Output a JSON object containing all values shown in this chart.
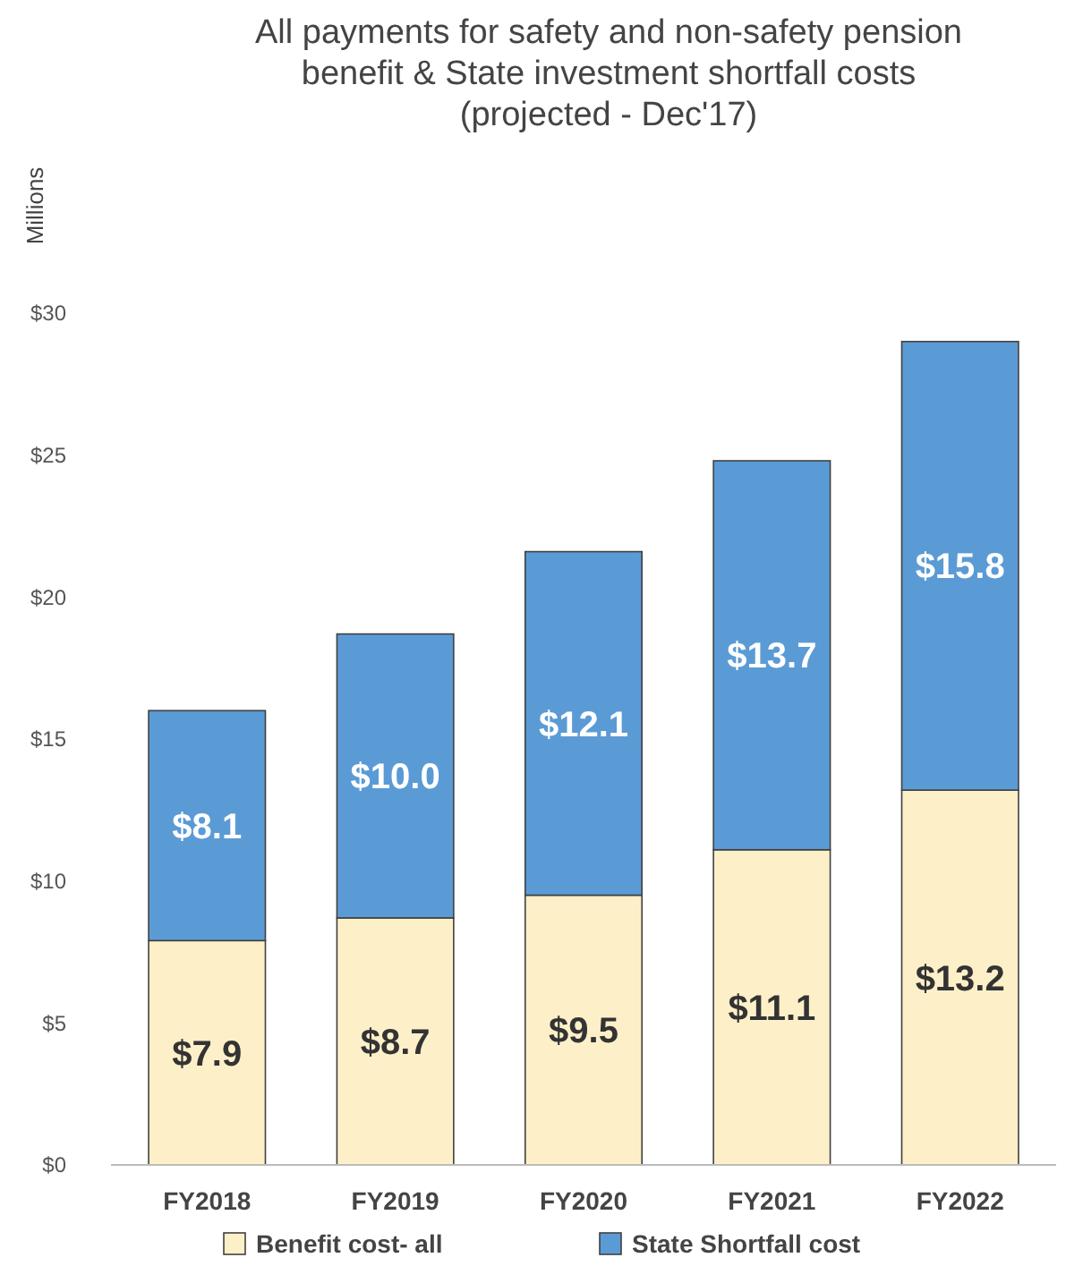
{
  "chart_data": {
    "type": "bar",
    "stacked": true,
    "title": "All payments for safety and non-safety pension\nbenefit & State investment shortfall costs\n(projected - Dec'17)",
    "ylabel": "Millions",
    "categories": [
      "FY2018",
      "FY2019",
      "FY2020",
      "FY2021",
      "FY2022"
    ],
    "series": [
      {
        "name": "Benefit cost- all",
        "color": "#fdf0c9",
        "values": [
          7.9,
          8.7,
          9.5,
          11.1,
          13.2
        ],
        "value_labels": [
          "$7.9",
          "$8.7",
          "$9.5",
          "$11.1",
          "$13.2"
        ]
      },
      {
        "name": "State Shortfall cost",
        "color": "#5b9bd5",
        "values": [
          8.1,
          10.0,
          12.1,
          13.7,
          15.8
        ],
        "value_labels": [
          "$8.1",
          "$10.0",
          "$12.1",
          "$13.7",
          "$15.8"
        ]
      }
    ],
    "ylim": [
      0,
      30
    ],
    "yticks": [
      {
        "value": 0,
        "label": "$0"
      },
      {
        "value": 5,
        "label": "$5"
      },
      {
        "value": 10,
        "label": "$10"
      },
      {
        "value": 15,
        "label": "$15"
      },
      {
        "value": 20,
        "label": "$20"
      },
      {
        "value": 25,
        "label": "$25"
      },
      {
        "value": 30,
        "label": "$30"
      }
    ],
    "grid": false,
    "legend": "bottom"
  }
}
